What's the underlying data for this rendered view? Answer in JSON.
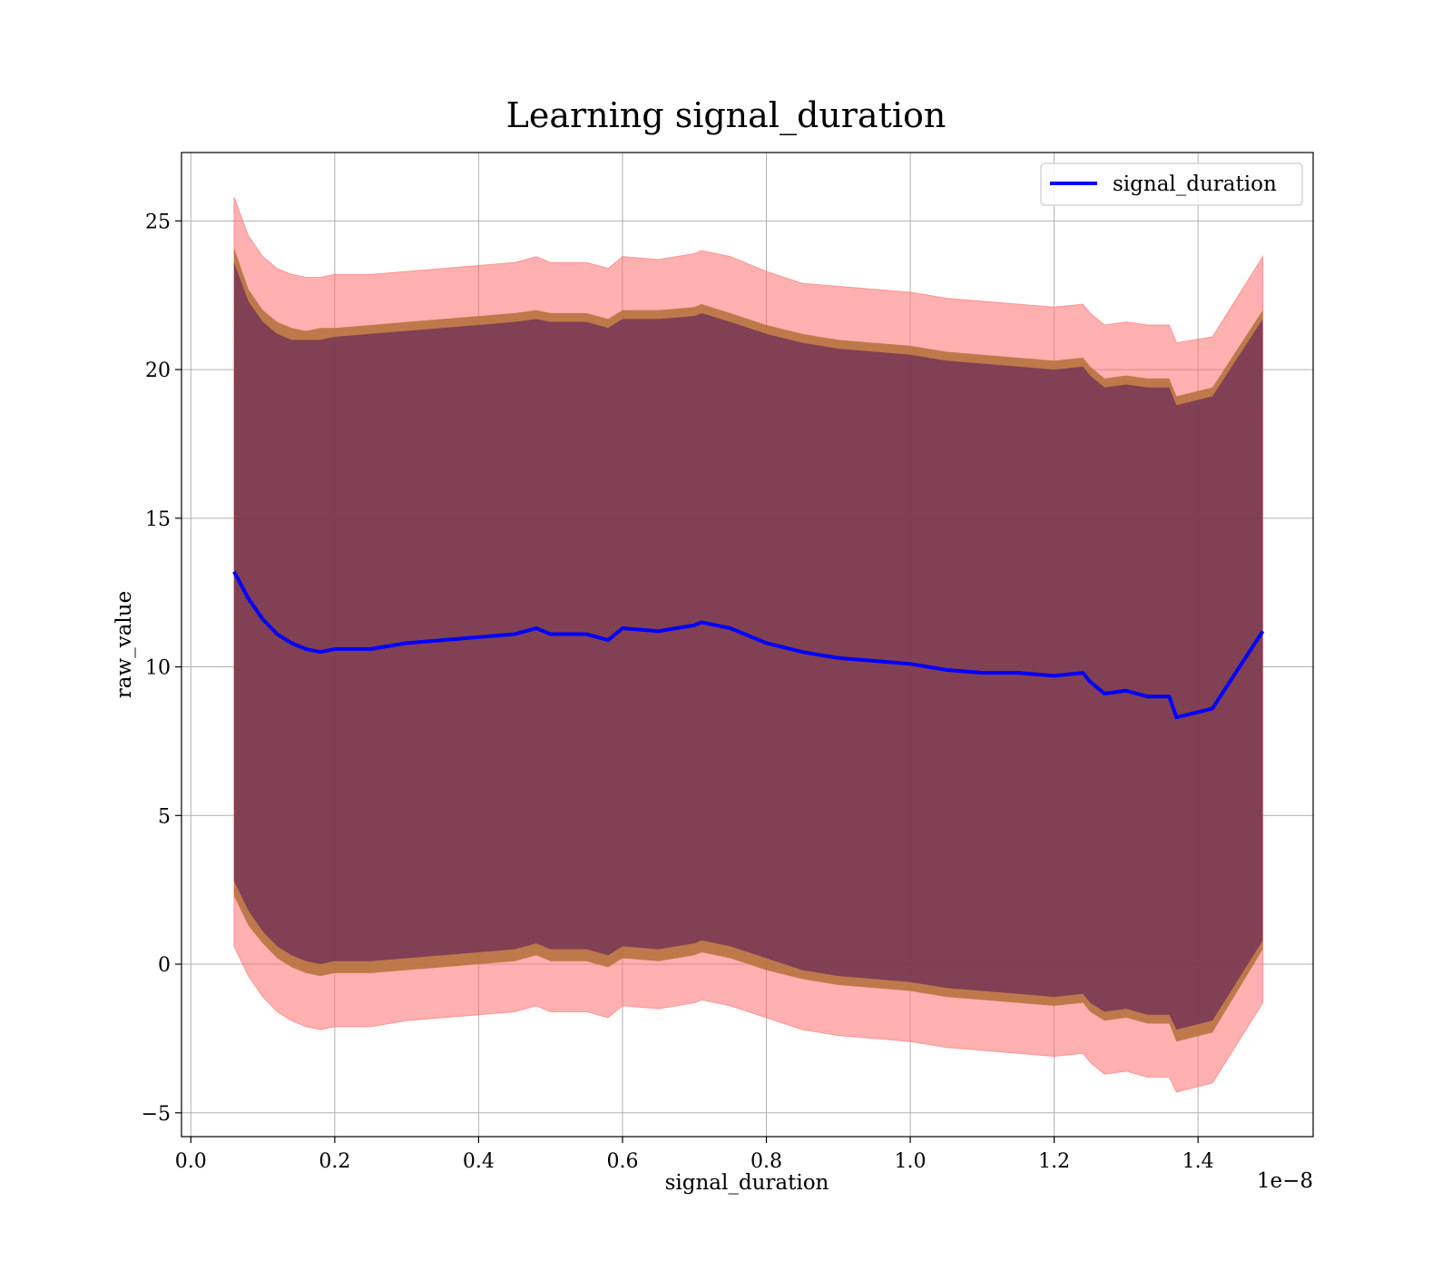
{
  "chart_data": {
    "type": "line",
    "title": "Learning signal_duration",
    "xlabel": "signal_duration",
    "ylabel": "raw_value",
    "x_offset_text": "1e−8",
    "xlim": [
      -0.013,
      1.56
    ],
    "ylim": [
      -5.8,
      27.3
    ],
    "x_ticks": [
      0.0,
      0.2,
      0.4,
      0.6,
      0.8,
      1.0,
      1.2,
      1.4
    ],
    "x_tick_labels": [
      "0.0",
      "0.2",
      "0.4",
      "0.6",
      "0.8",
      "1.0",
      "1.2",
      "1.4"
    ],
    "y_ticks": [
      -5,
      0,
      5,
      10,
      15,
      20,
      25
    ],
    "y_tick_labels": [
      "−5",
      "0",
      "5",
      "10",
      "15",
      "20",
      "25"
    ],
    "grid": true,
    "legend_position": "top-right",
    "series_color": "#0000ff",
    "band_colors": {
      "outer": "#ff6f6f",
      "middle": "#b3703a",
      "inner": "#7a3a55"
    },
    "series": [
      {
        "name": "signal_duration",
        "x": [
          0.06,
          0.08,
          0.1,
          0.12,
          0.14,
          0.16,
          0.18,
          0.2,
          0.25,
          0.3,
          0.35,
          0.4,
          0.45,
          0.48,
          0.5,
          0.55,
          0.58,
          0.6,
          0.65,
          0.7,
          0.71,
          0.75,
          0.8,
          0.85,
          0.9,
          0.95,
          1.0,
          1.05,
          1.1,
          1.15,
          1.2,
          1.24,
          1.25,
          1.27,
          1.3,
          1.33,
          1.36,
          1.37,
          1.42,
          1.49
        ],
        "y": [
          13.2,
          12.3,
          11.6,
          11.1,
          10.8,
          10.6,
          10.5,
          10.6,
          10.6,
          10.8,
          10.9,
          11.0,
          11.1,
          11.3,
          11.1,
          11.1,
          10.9,
          11.3,
          11.2,
          11.4,
          11.5,
          11.3,
          10.8,
          10.5,
          10.3,
          10.2,
          10.1,
          9.9,
          9.8,
          9.8,
          9.7,
          9.8,
          9.5,
          9.1,
          9.2,
          9.0,
          9.0,
          8.3,
          8.6,
          11.2
        ],
        "inner_band": {
          "upper": [
            23.6,
            22.3,
            21.6,
            21.2,
            21.0,
            21.0,
            21.0,
            21.1,
            21.2,
            21.3,
            21.4,
            21.5,
            21.6,
            21.7,
            21.6,
            21.6,
            21.4,
            21.7,
            21.7,
            21.8,
            21.9,
            21.6,
            21.2,
            20.9,
            20.7,
            20.6,
            20.5,
            20.3,
            20.2,
            20.1,
            20.0,
            20.1,
            19.8,
            19.4,
            19.5,
            19.4,
            19.4,
            18.8,
            19.1,
            21.7
          ],
          "lower": [
            2.8,
            1.8,
            1.1,
            0.6,
            0.3,
            0.1,
            0.0,
            0.1,
            0.1,
            0.2,
            0.3,
            0.4,
            0.5,
            0.7,
            0.5,
            0.5,
            0.3,
            0.6,
            0.5,
            0.7,
            0.8,
            0.6,
            0.2,
            -0.2,
            -0.4,
            -0.5,
            -0.6,
            -0.8,
            -0.9,
            -1.0,
            -1.1,
            -1.0,
            -1.3,
            -1.6,
            -1.5,
            -1.7,
            -1.7,
            -2.2,
            -1.9,
            0.8
          ]
        },
        "middle_band": {
          "upper": [
            24.1,
            22.7,
            22.0,
            21.6,
            21.4,
            21.3,
            21.4,
            21.4,
            21.5,
            21.6,
            21.7,
            21.8,
            21.9,
            22.0,
            21.9,
            21.9,
            21.7,
            22.0,
            22.0,
            22.1,
            22.2,
            21.9,
            21.5,
            21.2,
            21.0,
            20.9,
            20.8,
            20.6,
            20.5,
            20.4,
            20.3,
            20.4,
            20.1,
            19.7,
            19.8,
            19.7,
            19.7,
            19.1,
            19.4,
            22.0
          ],
          "lower": [
            2.3,
            1.3,
            0.7,
            0.2,
            -0.1,
            -0.3,
            -0.4,
            -0.3,
            -0.3,
            -0.2,
            -0.1,
            0.0,
            0.1,
            0.3,
            0.1,
            0.1,
            -0.1,
            0.2,
            0.1,
            0.3,
            0.4,
            0.2,
            -0.2,
            -0.5,
            -0.7,
            -0.8,
            -0.9,
            -1.1,
            -1.2,
            -1.3,
            -1.4,
            -1.3,
            -1.6,
            -1.9,
            -1.8,
            -2.0,
            -2.0,
            -2.6,
            -2.3,
            0.5
          ]
        },
        "outer_band": {
          "upper": [
            25.8,
            24.5,
            23.8,
            23.4,
            23.2,
            23.1,
            23.1,
            23.2,
            23.2,
            23.3,
            23.4,
            23.5,
            23.6,
            23.8,
            23.6,
            23.6,
            23.4,
            23.8,
            23.7,
            23.9,
            24.0,
            23.8,
            23.3,
            22.9,
            22.8,
            22.7,
            22.6,
            22.4,
            22.3,
            22.2,
            22.1,
            22.2,
            21.9,
            21.5,
            21.6,
            21.5,
            21.5,
            20.9,
            21.1,
            23.8
          ],
          "lower": [
            0.6,
            -0.4,
            -1.1,
            -1.6,
            -1.9,
            -2.1,
            -2.2,
            -2.1,
            -2.1,
            -1.9,
            -1.8,
            -1.7,
            -1.6,
            -1.4,
            -1.6,
            -1.6,
            -1.8,
            -1.4,
            -1.5,
            -1.3,
            -1.2,
            -1.4,
            -1.8,
            -2.2,
            -2.4,
            -2.5,
            -2.6,
            -2.8,
            -2.9,
            -3.0,
            -3.1,
            -3.0,
            -3.3,
            -3.7,
            -3.6,
            -3.8,
            -3.8,
            -4.3,
            -4.0,
            -1.3
          ]
        }
      }
    ]
  }
}
